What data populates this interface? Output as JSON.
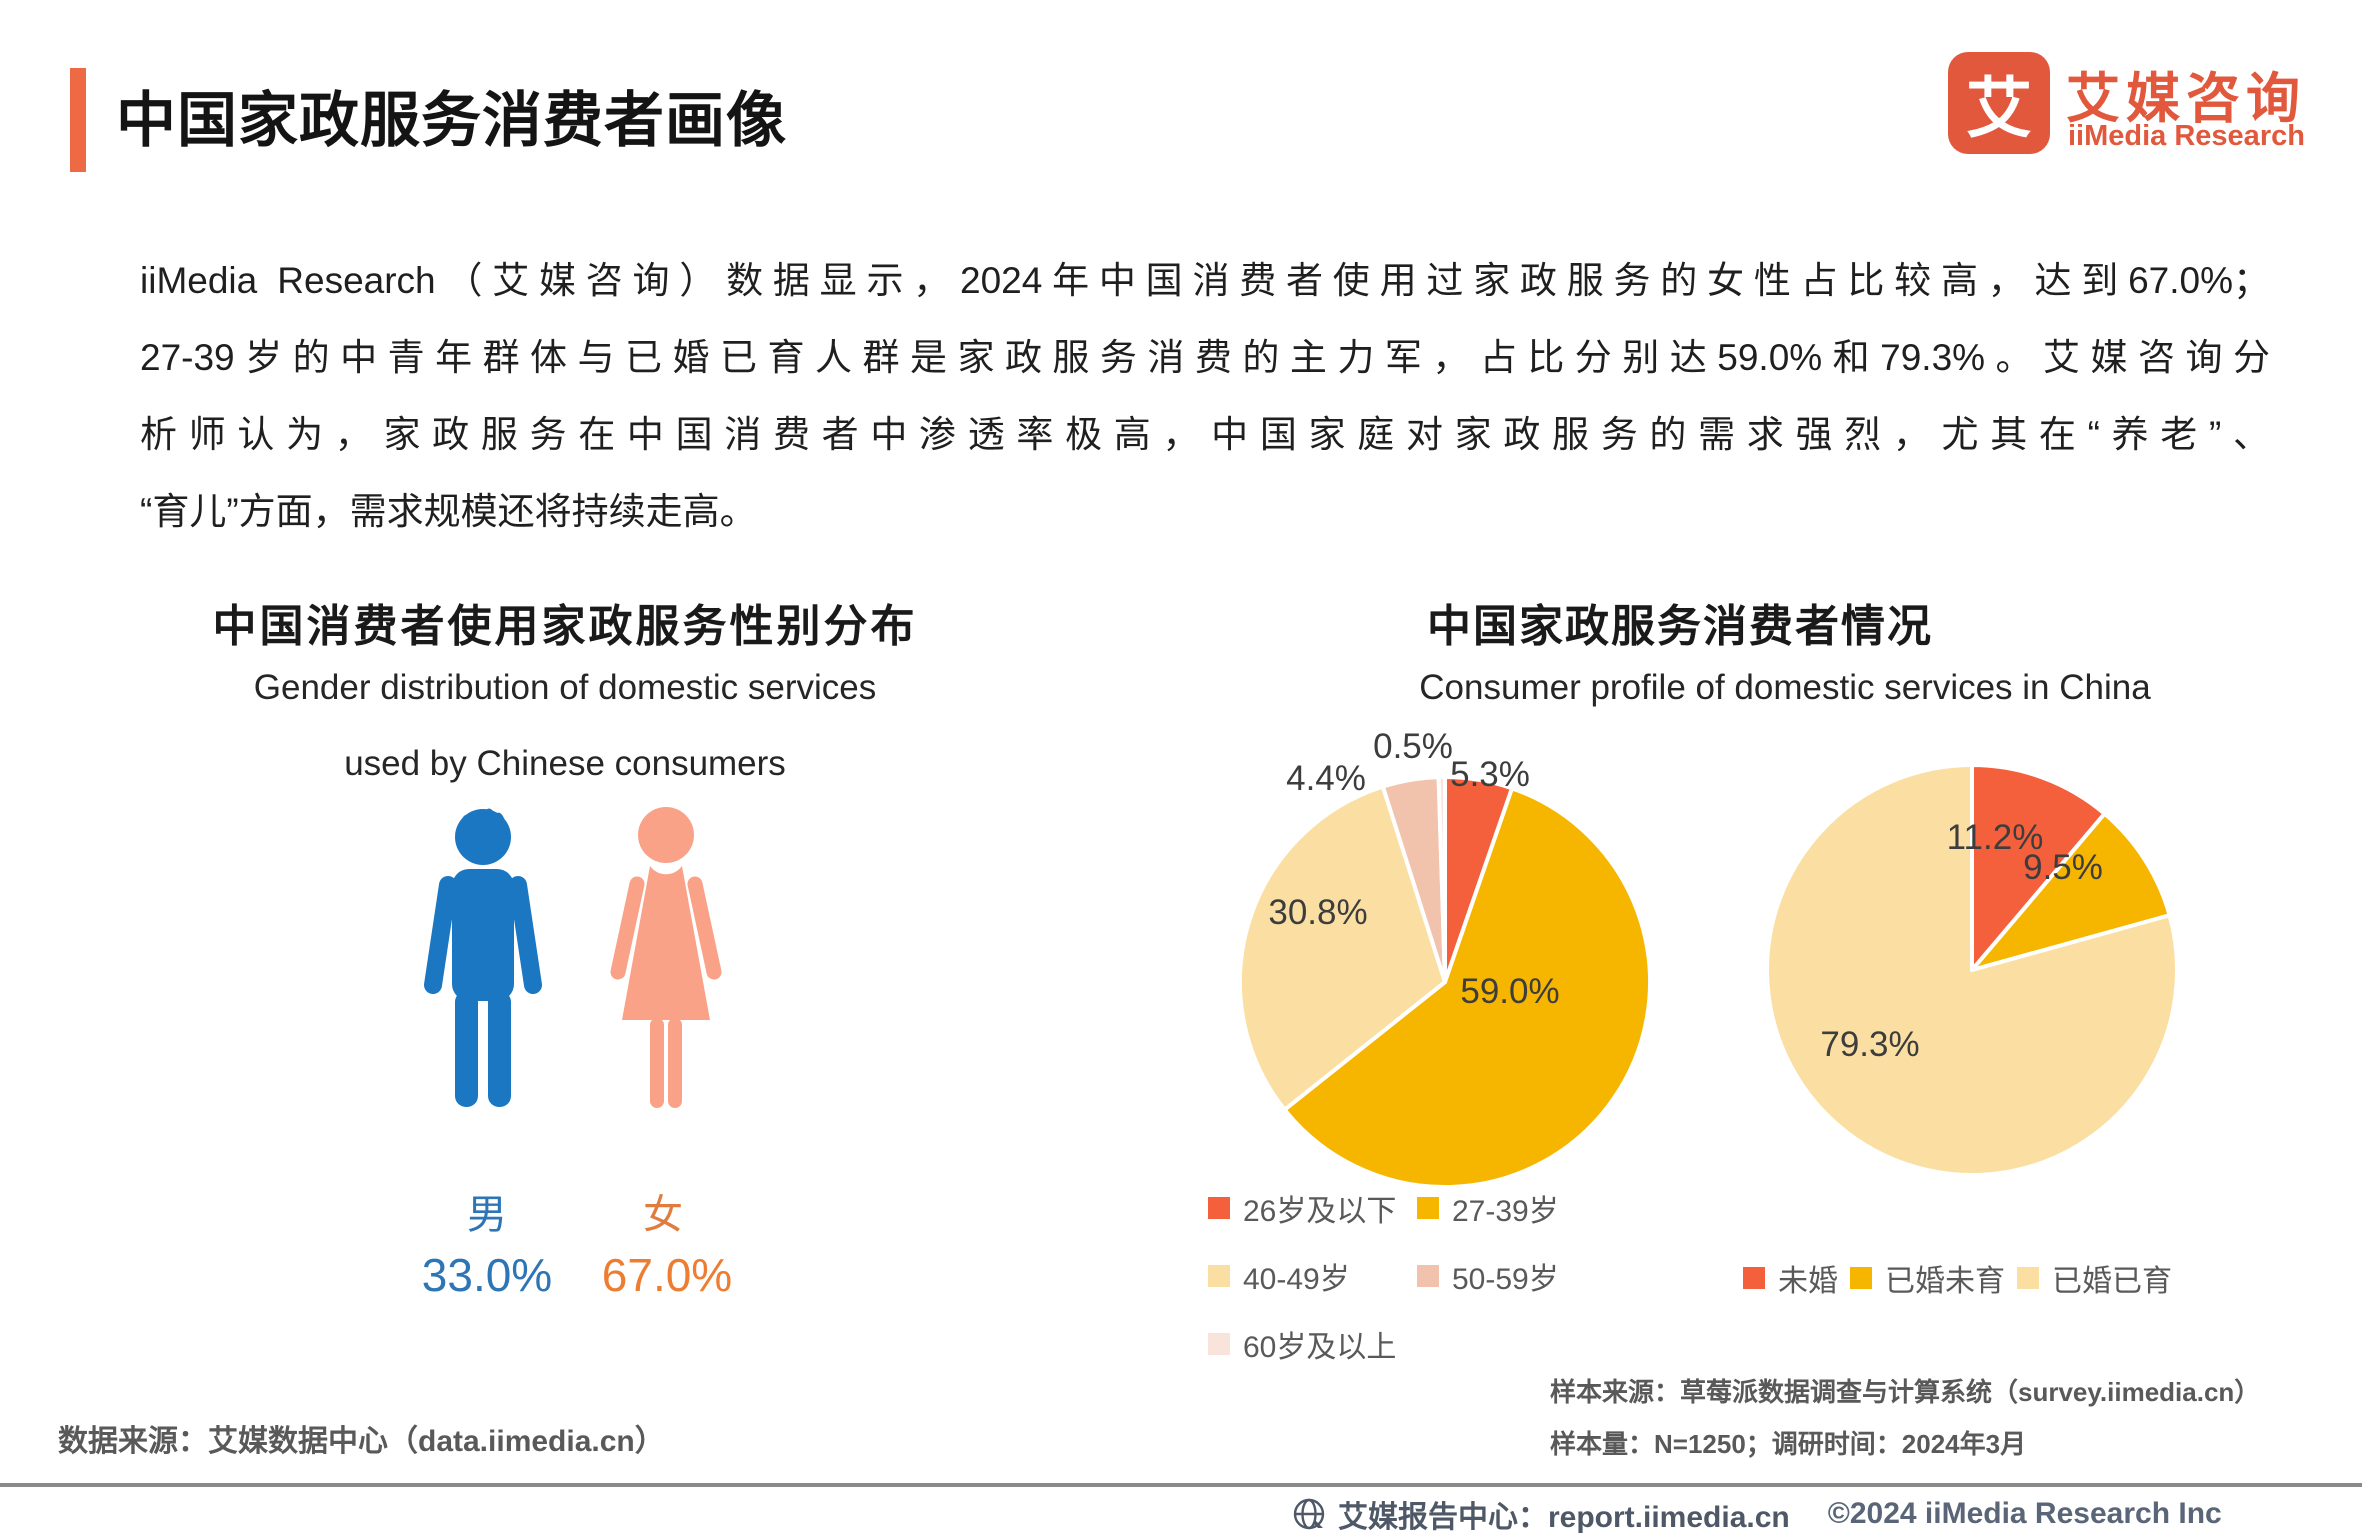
{
  "page": {
    "title": "中国家政服务消费者画像",
    "accent_color": "#ED6A45"
  },
  "logo": {
    "mark": "艾",
    "name_cn": "艾媒咨询",
    "name_en": "iiMedia Research",
    "color": "#E1583C"
  },
  "intro": {
    "lines": [
      "iiMedia Research（艾媒咨询）数据显示，2024年中国消费者使用过家政服务的女性占比较高，达到67.0%；",
      "27-39岁的中青年群体与已婚已育人群是家政服务消费的主力军，占比分别达59.0%和79.3%。艾媒咨询分",
      "析师认为，家政服务在中国消费者中渗透率极高，中国家庭对家政服务的需求强烈，尤其在“养老”、",
      "“育儿”方面，需求规模还将持续走高。"
    ]
  },
  "profile_section": {
    "title_cn": "中国家政服务消费者情况",
    "subtitle_en": "Consumer profile of domestic services in China"
  },
  "chart_data": [
    {
      "type": "pictogram",
      "title": "中国消费者使用家政服务性别分布",
      "subtitle_lines": [
        "Gender distribution of domestic services",
        "used by Chinese consumers"
      ],
      "categories": [
        "男",
        "女"
      ],
      "values": [
        33.0,
        67.0
      ],
      "value_labels": [
        "33.0%",
        "67.0%"
      ],
      "unit": "%",
      "colors": [
        "#1B77C2",
        "#F9A287"
      ]
    },
    {
      "type": "pie",
      "name": "age-distribution",
      "categories": [
        "26岁及以下",
        "27-39岁",
        "40-49岁",
        "50-59岁",
        "60岁及以上"
      ],
      "values": [
        5.3,
        59.0,
        30.8,
        4.4,
        0.5
      ],
      "labels": [
        "5.3%",
        "59.0%",
        "30.8%",
        "4.4%",
        "0.5%"
      ],
      "colors": [
        "#F4603C",
        "#F6B600",
        "#FBDFA2",
        "#F1C3AD",
        "#F9E4DC"
      ],
      "legend_position": "bottom"
    },
    {
      "type": "pie",
      "name": "marital-status",
      "categories": [
        "未婚",
        "已婚未育",
        "已婚已育"
      ],
      "values": [
        11.2,
        9.5,
        79.3
      ],
      "labels": [
        "11.2%",
        "9.5%",
        "79.3%"
      ],
      "colors": [
        "#F4603C",
        "#F6B600",
        "#FBDFA2"
      ],
      "legend_position": "bottom"
    }
  ],
  "sources": {
    "left": "数据来源：艾媒数据中心（data.iimedia.cn）",
    "right_line1": "样本来源：草莓派数据调查与计算系统（survey.iimedia.cn）",
    "right_line2": "样本量：N=1250；调研时间：2024年3月"
  },
  "footer": {
    "report_center": "艾媒报告中心：report.iimedia.cn",
    "copyright": "©2024  iiMedia Research  Inc"
  }
}
